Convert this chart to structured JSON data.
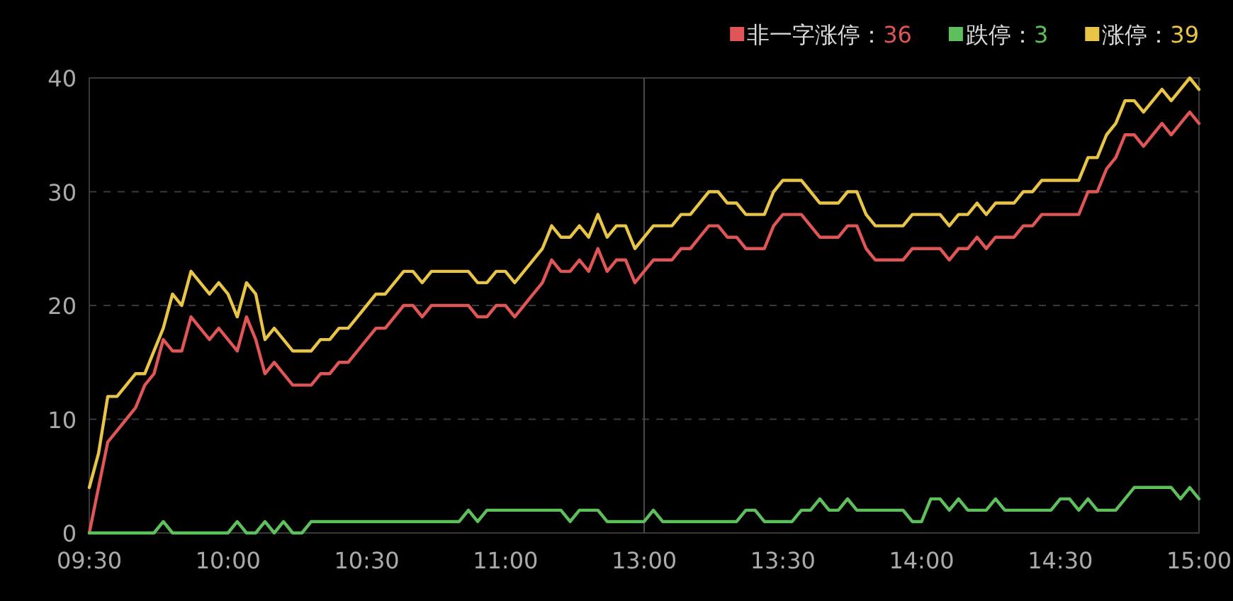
{
  "chart_data": {
    "type": "line",
    "categories": [
      "09:30",
      null,
      null,
      null,
      null,
      null,
      null,
      null,
      null,
      null,
      null,
      null,
      null,
      null,
      null,
      "10:00",
      null,
      null,
      null,
      null,
      null,
      null,
      null,
      null,
      null,
      null,
      null,
      null,
      null,
      null,
      "10:30",
      null,
      null,
      null,
      null,
      null,
      null,
      null,
      null,
      null,
      null,
      null,
      null,
      null,
      null,
      "11:00",
      null,
      null,
      null,
      null,
      null,
      null,
      null,
      null,
      null,
      null,
      null,
      null,
      null,
      null,
      "13:00",
      null,
      null,
      null,
      null,
      null,
      null,
      null,
      null,
      null,
      null,
      null,
      null,
      null,
      null,
      "13:30",
      null,
      null,
      null,
      null,
      null,
      null,
      null,
      null,
      null,
      null,
      null,
      null,
      null,
      null,
      "14:00",
      null,
      null,
      null,
      null,
      null,
      null,
      null,
      null,
      null,
      null,
      null,
      null,
      null,
      null,
      "14:30",
      null,
      null,
      null,
      null,
      null,
      null,
      null,
      null,
      null,
      null,
      null,
      null,
      null,
      null,
      "15:00"
    ],
    "series": [
      {
        "name": "非一字涨停：36",
        "color": "#e05555",
        "values": [
          0,
          4,
          8,
          9,
          10,
          11,
          13,
          14,
          17,
          16,
          16,
          19,
          18,
          17,
          18,
          17,
          16,
          19,
          17,
          14,
          15,
          14,
          13,
          13,
          13,
          14,
          14,
          15,
          15,
          16,
          17,
          18,
          18,
          19,
          20,
          20,
          19,
          20,
          20,
          20,
          20,
          20,
          19,
          19,
          20,
          20,
          19,
          20,
          21,
          22,
          24,
          23,
          23,
          24,
          23,
          25,
          23,
          24,
          24,
          22,
          23,
          24,
          24,
          24,
          25,
          25,
          26,
          27,
          27,
          26,
          26,
          25,
          25,
          25,
          27,
          28,
          28,
          28,
          27,
          26,
          26,
          26,
          27,
          27,
          25,
          24,
          24,
          24,
          24,
          25,
          25,
          25,
          25,
          24,
          25,
          25,
          26,
          25,
          26,
          26,
          26,
          27,
          27,
          28,
          28,
          28,
          28,
          28,
          30,
          30,
          32,
          33,
          35,
          35,
          34,
          35,
          36,
          35,
          36,
          37,
          36
        ]
      },
      {
        "name": "跌停：3",
        "color": "#5dc05d",
        "values": [
          0,
          0,
          0,
          0,
          0,
          0,
          0,
          0,
          1,
          0,
          0,
          0,
          0,
          0,
          0,
          0,
          1,
          0,
          0,
          1,
          0,
          1,
          0,
          0,
          1,
          1,
          1,
          1,
          1,
          1,
          1,
          1,
          1,
          1,
          1,
          1,
          1,
          1,
          1,
          1,
          1,
          2,
          1,
          2,
          2,
          2,
          2,
          2,
          2,
          2,
          2,
          2,
          1,
          2,
          2,
          2,
          1,
          1,
          1,
          1,
          1,
          2,
          1,
          1,
          1,
          1,
          1,
          1,
          1,
          1,
          1,
          2,
          2,
          1,
          1,
          1,
          1,
          2,
          2,
          3,
          2,
          2,
          3,
          2,
          2,
          2,
          2,
          2,
          2,
          1,
          1,
          3,
          3,
          2,
          3,
          2,
          2,
          2,
          3,
          2,
          2,
          2,
          2,
          2,
          2,
          3,
          3,
          2,
          3,
          2,
          2,
          2,
          3,
          4,
          4,
          4,
          4,
          4,
          3,
          4,
          3
        ]
      },
      {
        "name": "涨停：39",
        "color": "#e8c447",
        "values": [
          4,
          7,
          12,
          12,
          13,
          14,
          14,
          16,
          18,
          21,
          20,
          23,
          22,
          21,
          22,
          21,
          19,
          22,
          21,
          17,
          18,
          17,
          16,
          16,
          16,
          17,
          17,
          18,
          18,
          19,
          20,
          21,
          21,
          22,
          23,
          23,
          22,
          23,
          23,
          23,
          23,
          23,
          22,
          22,
          23,
          23,
          22,
          23,
          24,
          25,
          27,
          26,
          26,
          27,
          26,
          28,
          26,
          27,
          27,
          25,
          26,
          27,
          27,
          27,
          28,
          28,
          29,
          30,
          30,
          29,
          29,
          28,
          28,
          28,
          30,
          31,
          31,
          31,
          30,
          29,
          29,
          29,
          30,
          30,
          28,
          27,
          27,
          27,
          27,
          28,
          28,
          28,
          28,
          27,
          28,
          28,
          29,
          28,
          29,
          29,
          29,
          30,
          30,
          31,
          31,
          31,
          31,
          31,
          33,
          33,
          35,
          36,
          38,
          38,
          37,
          38,
          39,
          38,
          39,
          40,
          39
        ]
      }
    ],
    "ylim": [
      0,
      40
    ],
    "yticks": [
      0,
      10,
      20,
      30,
      40
    ],
    "grid": "y",
    "legend": "top right",
    "ref_lines": [
      {
        "axis": "x",
        "value": "13:00",
        "color": "#4a4a4a"
      }
    ]
  }
}
